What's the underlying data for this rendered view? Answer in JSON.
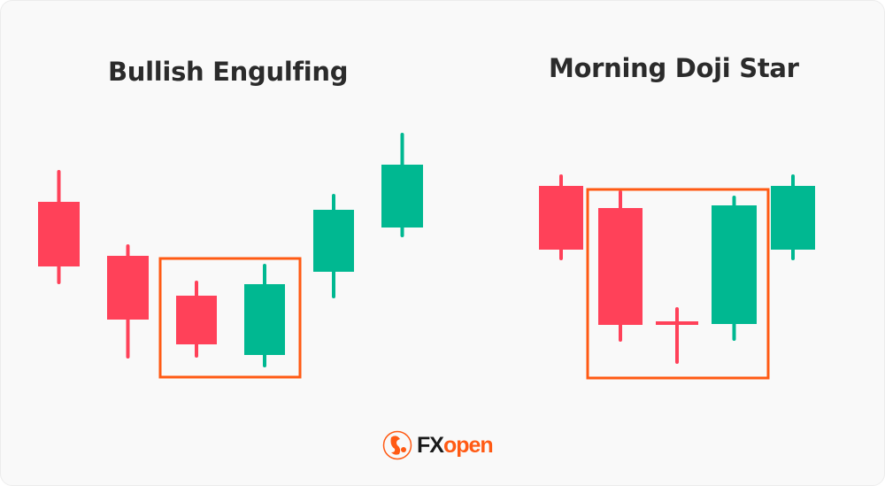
{
  "titles": {
    "left": "Bullish Engulfing",
    "right": "Morning Doji Star"
  },
  "colors": {
    "bearish": "#ff4159",
    "bullish": "#00b891",
    "highlight": "#ff5a14",
    "background": "#f9f9f9"
  },
  "logo": {
    "brand_fx": "FX",
    "brand_open": "open",
    "icon": "dragon-emblem-icon"
  }
}
